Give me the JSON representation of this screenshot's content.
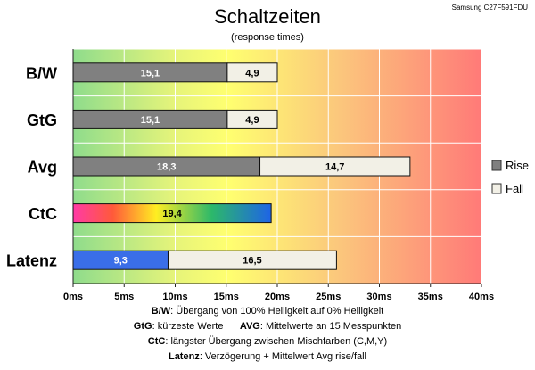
{
  "title": "Schaltzeiten",
  "subtitle": "(response times)",
  "model": "Samsung C27F591FDU",
  "colors": {
    "rise": "#808080",
    "fall": "#f2f0e6",
    "latenz_rise": "#3a6ee8"
  },
  "chart_data": {
    "type": "bar",
    "orientation": "horizontal",
    "stacked": true,
    "categories": [
      "B/W",
      "GtG",
      "Avg",
      "CtC",
      "Latenz"
    ],
    "series": [
      {
        "name": "Rise",
        "values": [
          15.1,
          15.1,
          18.3,
          19.4,
          9.3
        ]
      },
      {
        "name": "Fall",
        "values": [
          4.9,
          4.9,
          14.7,
          null,
          16.5
        ]
      }
    ],
    "data_labels": {
      "rise": [
        "15,1",
        "15,1",
        "18,3",
        "19,4",
        "9,3"
      ],
      "fall": [
        "4,9",
        "4,9",
        "14,7",
        "",
        "16,5"
      ]
    },
    "xlim": [
      0,
      40
    ],
    "xticks": [
      0,
      5,
      10,
      15,
      20,
      25,
      30,
      35,
      40
    ],
    "xtick_labels": [
      "0ms",
      "5ms",
      "10ms",
      "15ms",
      "20ms",
      "25ms",
      "30ms",
      "35ms",
      "40ms"
    ],
    "grid": true,
    "legend": "right",
    "background": "gradient green-yellow-red"
  },
  "footnotes": [
    {
      "key": "B/W",
      "text": ":  Übergang von 100% Helligkeit auf 0% Helligkeit"
    },
    {
      "key": "GtG",
      "text": ": kürzeste  Werte",
      "key2": "AVG",
      "text2": ": Mittelwerte  an 15 Messpunkten"
    },
    {
      "key": "CtC",
      "text": ": längster Übergang  zwischen Mischfarben (C,M,Y)"
    },
    {
      "key": "Latenz",
      "text": ": Verzögerung  + Mittelwert Avg rise/fall"
    }
  ]
}
